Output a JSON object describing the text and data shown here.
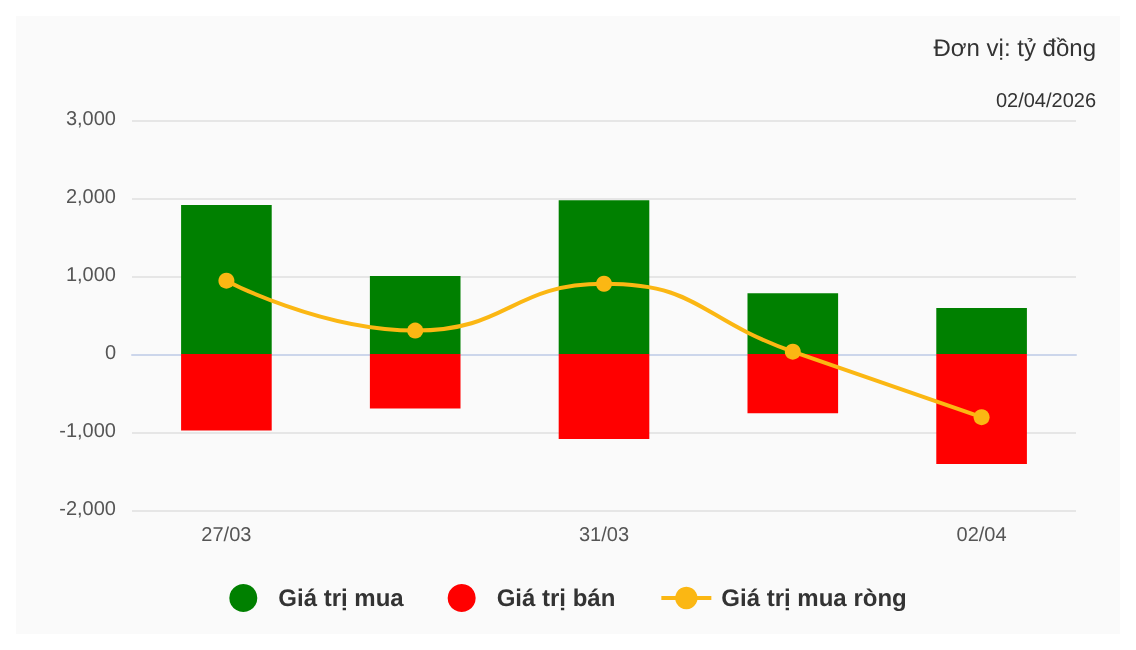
{
  "chart_data": {
    "type": "bar",
    "stacked": true,
    "categories": [
      "27/03",
      null,
      "31/03",
      null,
      "02/04"
    ],
    "series": [
      {
        "name": "Giá trị mua",
        "color": "#008000",
        "values": [
          1910,
          1000,
          1970,
          780,
          590
        ]
      },
      {
        "name": "Giá trị bán",
        "color": "#ff0000",
        "values": [
          -980,
          -700,
          -1090,
          -760,
          -1410
        ]
      },
      {
        "name": "Giá trị mua ròng",
        "type": "line",
        "color": "#fbb713",
        "values": [
          940,
          300,
          900,
          30,
          -810
        ]
      }
    ],
    "ylim": [
      -2000,
      3000
    ],
    "yticks": [
      {
        "value": -2000,
        "label": "-2,000"
      },
      {
        "value": -1000,
        "label": "-1,000"
      },
      0,
      {
        "value": 1000,
        "label": "1,000"
      },
      {
        "value": 2000,
        "label": "2,000"
      },
      {
        "value": 3000,
        "label": "3,000"
      }
    ],
    "grid": "y",
    "legend": "bottom",
    "marker": "circle",
    "line_style": "solid",
    "annotations": [
      "Đơn vị: tỷ đồng",
      "02/04/2026"
    ]
  }
}
